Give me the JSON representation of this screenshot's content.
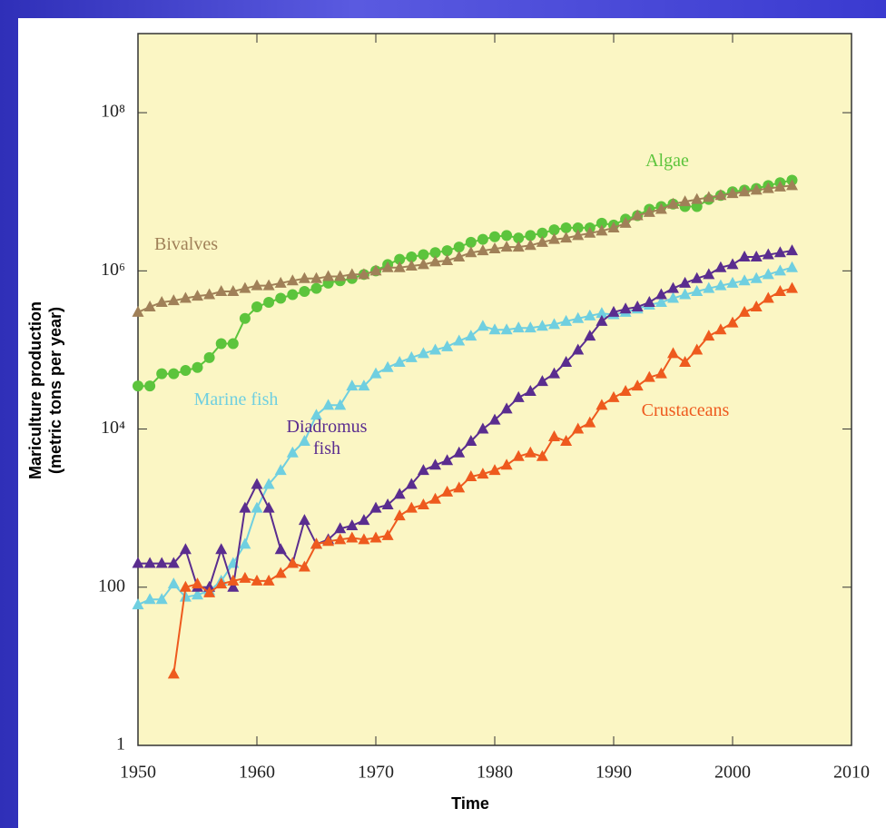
{
  "chart_data": {
    "type": "line",
    "yscale": "log",
    "xlabel": "Time",
    "ylabel": [
      "Mariculture production",
      "(metric tons per year)"
    ],
    "xlim": [
      1950,
      2010
    ],
    "xticks": [
      1950,
      1960,
      1970,
      1980,
      1990,
      2000,
      2010
    ],
    "ylim": [
      1,
      1000000000
    ],
    "yticks": [
      1,
      100,
      {
        "value": 10000,
        "label": "10⁴"
      },
      {
        "value": 1000000,
        "label": "10⁶"
      },
      {
        "value": 100000000,
        "label": "10⁸"
      }
    ],
    "x": [
      1950,
      1951,
      1952,
      1953,
      1954,
      1955,
      1956,
      1957,
      1958,
      1959,
      1960,
      1961,
      1962,
      1963,
      1964,
      1965,
      1966,
      1967,
      1968,
      1969,
      1970,
      1971,
      1972,
      1973,
      1974,
      1975,
      1976,
      1977,
      1978,
      1979,
      1980,
      1981,
      1982,
      1983,
      1984,
      1985,
      1986,
      1987,
      1988,
      1989,
      1990,
      1991,
      1992,
      1993,
      1994,
      1995,
      1996,
      1997,
      1998,
      1999,
      2000,
      2001,
      2002,
      2003,
      2004,
      2005
    ],
    "series": [
      {
        "name": "Algae",
        "color": "#5cc43c",
        "marker": "circle",
        "values": [
          35000,
          35000,
          50000,
          50000,
          55000,
          60000,
          80000,
          120000,
          120000,
          250000,
          350000,
          400000,
          450000,
          500000,
          550000,
          600000,
          700000,
          750000,
          800000,
          900000,
          1000000,
          1200000,
          1400000,
          1500000,
          1600000,
          1700000,
          1800000,
          2000000,
          2300000,
          2500000,
          2700000,
          2800000,
          2600000,
          2800000,
          3000000,
          3300000,
          3500000,
          3500000,
          3500000,
          4000000,
          3800000,
          4500000,
          5000000,
          6000000,
          6500000,
          7000000,
          6500000,
          6500000,
          8000000,
          9000000,
          10000000,
          10500000,
          11000000,
          12000000,
          13000000,
          14000000
        ]
      },
      {
        "name": "Bivalves",
        "color": "#a08058",
        "marker": "triangle",
        "values": [
          300000,
          350000,
          400000,
          420000,
          450000,
          480000,
          500000,
          550000,
          550000,
          600000,
          650000,
          650000,
          700000,
          750000,
          800000,
          800000,
          850000,
          850000,
          900000,
          900000,
          1000000,
          1100000,
          1100000,
          1150000,
          1200000,
          1300000,
          1350000,
          1500000,
          1700000,
          1800000,
          1900000,
          2000000,
          2000000,
          2100000,
          2300000,
          2500000,
          2600000,
          2800000,
          3000000,
          3200000,
          3500000,
          4000000,
          5000000,
          5500000,
          6000000,
          7000000,
          7500000,
          8000000,
          8500000,
          9000000,
          9500000,
          10000000,
          10500000,
          11000000,
          11500000,
          12000000
        ]
      },
      {
        "name": "Marine fish",
        "color": "#6fcfe0",
        "marker": "triangle",
        "values": [
          60,
          70,
          70,
          110,
          75,
          80,
          90,
          120,
          200,
          350,
          1000,
          2000,
          3000,
          5000,
          7000,
          15000,
          20000,
          20000,
          35000,
          35000,
          50000,
          60000,
          70000,
          80000,
          90000,
          100000,
          110000,
          130000,
          150000,
          200000,
          180000,
          180000,
          190000,
          190000,
          200000,
          210000,
          230000,
          250000,
          270000,
          290000,
          280000,
          300000,
          330000,
          370000,
          400000,
          450000,
          500000,
          550000,
          600000,
          650000,
          700000,
          750000,
          800000,
          900000,
          1000000,
          1100000
        ]
      },
      {
        "name": "Diadromus fish",
        "color": "#5a2d8f",
        "marker": "triangle",
        "values": [
          200,
          200,
          200,
          200,
          300,
          100,
          100,
          300,
          100,
          1000,
          2000,
          1000,
          300,
          200,
          700,
          350,
          400,
          550,
          600,
          700,
          1000,
          1100,
          1500,
          2000,
          3000,
          3500,
          4000,
          5000,
          7000,
          10000,
          13000,
          18000,
          25000,
          30000,
          40000,
          50000,
          70000,
          100000,
          150000,
          230000,
          300000,
          330000,
          350000,
          400000,
          500000,
          600000,
          700000,
          800000,
          900000,
          1100000,
          1200000,
          1500000,
          1500000,
          1600000,
          1700000,
          1800000
        ]
      },
      {
        "name": "Crustaceans",
        "color": "#ee5a1e",
        "marker": "triangle",
        "values": [
          null,
          null,
          null,
          8,
          100,
          110,
          85,
          110,
          120,
          130,
          120,
          120,
          150,
          200,
          180,
          350,
          380,
          400,
          420,
          400,
          420,
          450,
          800,
          1000,
          1100,
          1300,
          1600,
          1800,
          2500,
          2700,
          3000,
          3500,
          4500,
          5000,
          4500,
          8000,
          7000,
          10000,
          12000,
          20000,
          25000,
          30000,
          35000,
          45000,
          50000,
          90000,
          70000,
          100000,
          150000,
          180000,
          220000,
          300000,
          350000,
          450000,
          550000,
          600000
        ]
      }
    ]
  }
}
